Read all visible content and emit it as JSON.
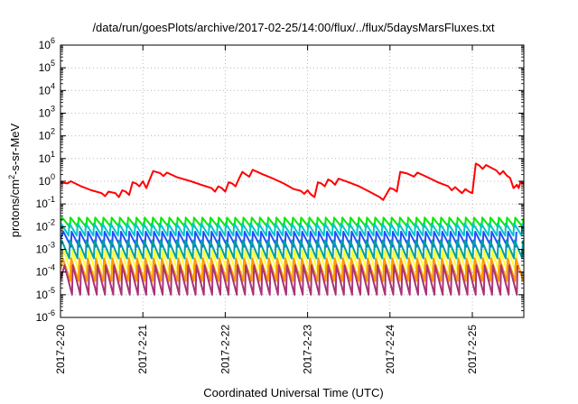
{
  "chart_data": {
    "type": "line",
    "title": "/data/run/goesPlots/archive/2017-02-25/14:00/flux/../flux/5daysMarsFluxes.txt",
    "xlabel": "Coordinated Universal Time (UTC)",
    "ylabel": "protons/cm²-s-sr-MeV",
    "ylabel_base": "protons/cm",
    "ylabel_sup": "2",
    "ylabel_rest": "-s-sr-MeV",
    "yscale": "log",
    "ylim": [
      1e-06,
      1000000.0
    ],
    "xlim": [
      "2017-02-20",
      "2017-02-25T15:00"
    ],
    "x_ticks": [
      "2017-2-20",
      "2017-2-21",
      "2017-2-22",
      "2017-2-23",
      "2017-2-24",
      "2017-2-25"
    ],
    "y_ticks": [
      {
        "base": "10",
        "exp": "-6"
      },
      {
        "base": "10",
        "exp": "-5"
      },
      {
        "base": "10",
        "exp": "-4"
      },
      {
        "base": "10",
        "exp": "-3"
      },
      {
        "base": "10",
        "exp": "-2"
      },
      {
        "base": "10",
        "exp": "-1"
      },
      {
        "base": "10",
        "exp": "0"
      },
      {
        "base": "10",
        "exp": "1"
      },
      {
        "base": "10",
        "exp": "2"
      },
      {
        "base": "10",
        "exp": "3"
      },
      {
        "base": "10",
        "exp": "4"
      },
      {
        "base": "10",
        "exp": "5"
      },
      {
        "base": "10",
        "exp": "6"
      }
    ],
    "grid": true,
    "series": [
      {
        "color": "#ff0000",
        "points": [
          [
            "2017-02-20T00:00",
            0.9
          ],
          [
            "2017-02-20T02:00",
            0.8
          ],
          [
            "2017-02-20T03:00",
            1.0
          ],
          [
            "2017-02-20T06:00",
            0.6
          ],
          [
            "2017-02-20T09:00",
            0.4
          ],
          [
            "2017-02-20T12:00",
            0.3
          ],
          [
            "2017-02-20T13:00",
            0.22
          ],
          [
            "2017-02-20T14:00",
            0.35
          ],
          [
            "2017-02-20T16:00",
            0.3
          ],
          [
            "2017-02-20T17:00",
            0.2
          ],
          [
            "2017-02-20T18:00",
            0.4
          ],
          [
            "2017-02-20T19:00",
            0.35
          ],
          [
            "2017-02-20T20:00",
            0.25
          ],
          [
            "2017-02-20T21:00",
            0.9
          ],
          [
            "2017-02-20T22:00",
            0.8
          ],
          [
            "2017-02-20T23:00",
            0.6
          ],
          [
            "2017-02-21T00:00",
            1.0
          ],
          [
            "2017-02-21T01:00",
            0.5
          ],
          [
            "2017-02-21T02:00",
            1.2
          ],
          [
            "2017-02-21T03:00",
            2.8
          ],
          [
            "2017-02-21T05:00",
            2.3
          ],
          [
            "2017-02-21T06:00",
            1.7
          ],
          [
            "2017-02-21T07:00",
            2.4
          ],
          [
            "2017-02-21T10:00",
            1.5
          ],
          [
            "2017-02-21T14:00",
            1.0
          ],
          [
            "2017-02-21T17:00",
            0.7
          ],
          [
            "2017-02-21T20:00",
            0.5
          ],
          [
            "2017-02-21T21:00",
            0.35
          ],
          [
            "2017-02-21T22:00",
            0.6
          ],
          [
            "2017-02-21T23:00",
            0.5
          ],
          [
            "2017-02-22T00:00",
            0.35
          ],
          [
            "2017-02-22T01:00",
            0.9
          ],
          [
            "2017-02-22T02:00",
            0.8
          ],
          [
            "2017-02-22T03:00",
            0.6
          ],
          [
            "2017-02-22T04:00",
            1.3
          ],
          [
            "2017-02-22T05:00",
            2.6
          ],
          [
            "2017-02-22T06:00",
            2.0
          ],
          [
            "2017-02-22T07:00",
            1.6
          ],
          [
            "2017-02-22T08:00",
            3.2
          ],
          [
            "2017-02-22T11:00",
            2.0
          ],
          [
            "2017-02-22T14:00",
            1.3
          ],
          [
            "2017-02-22T17:00",
            0.8
          ],
          [
            "2017-02-22T20:00",
            0.45
          ],
          [
            "2017-02-22T22:00",
            0.38
          ],
          [
            "2017-02-22T23:00",
            0.28
          ],
          [
            "2017-02-23T00:00",
            0.4
          ],
          [
            "2017-02-23T01:00",
            0.26
          ],
          [
            "2017-02-23T02:00",
            0.2
          ],
          [
            "2017-02-23T03:00",
            0.9
          ],
          [
            "2017-02-23T04:00",
            0.8
          ],
          [
            "2017-02-23T05:00",
            0.6
          ],
          [
            "2017-02-23T06:00",
            1.2
          ],
          [
            "2017-02-23T07:00",
            1.0
          ],
          [
            "2017-02-23T08:00",
            0.7
          ],
          [
            "2017-02-23T09:00",
            1.3
          ],
          [
            "2017-02-23T12:00",
            0.9
          ],
          [
            "2017-02-23T15:00",
            0.6
          ],
          [
            "2017-02-23T18:00",
            0.35
          ],
          [
            "2017-02-23T21:00",
            0.2
          ],
          [
            "2017-02-23T22:00",
            0.15
          ],
          [
            "2017-02-24T00:00",
            0.5
          ],
          [
            "2017-02-24T01:00",
            0.45
          ],
          [
            "2017-02-24T02:00",
            0.35
          ],
          [
            "2017-02-24T03:00",
            2.6
          ],
          [
            "2017-02-24T05:00",
            2.2
          ],
          [
            "2017-02-24T07:00",
            1.6
          ],
          [
            "2017-02-24T08:00",
            2.4
          ],
          [
            "2017-02-24T11:00",
            1.5
          ],
          [
            "2017-02-24T14:00",
            0.9
          ],
          [
            "2017-02-24T17:00",
            0.6
          ],
          [
            "2017-02-24T18:00",
            0.4
          ],
          [
            "2017-02-24T19:00",
            0.55
          ],
          [
            "2017-02-24T20:00",
            0.4
          ],
          [
            "2017-02-24T21:00",
            0.3
          ],
          [
            "2017-02-24T22:00",
            0.45
          ],
          [
            "2017-02-24T23:00",
            0.35
          ],
          [
            "2017-02-25T00:00",
            0.3
          ],
          [
            "2017-02-25T01:00",
            6.0
          ],
          [
            "2017-02-25T02:00",
            5.0
          ],
          [
            "2017-02-25T03:00",
            3.5
          ],
          [
            "2017-02-25T04:00",
            5.2
          ],
          [
            "2017-02-25T06:00",
            3.6
          ],
          [
            "2017-02-25T07:00",
            3.0
          ],
          [
            "2017-02-25T08:00",
            2.0
          ],
          [
            "2017-02-25T09:00",
            2.8
          ],
          [
            "2017-02-25T10:00",
            1.8
          ],
          [
            "2017-02-25T11:00",
            1.4
          ],
          [
            "2017-02-25T12:00",
            0.5
          ],
          [
            "2017-02-25T13:00",
            0.7
          ],
          [
            "2017-02-25T13:30",
            0.5
          ],
          [
            "2017-02-25T14:00",
            0.9
          ],
          [
            "2017-02-25T15:00",
            0.8
          ]
        ]
      },
      {
        "color": "#00ee00",
        "sawtooth": {
          "high": 0.025,
          "low": 0.0095,
          "start": "2017-02-20T00:30",
          "period_hours": 2.4
        }
      },
      {
        "color": "#00c8c8",
        "sawtooth": {
          "high": 0.014,
          "low": 0.004,
          "start": "2017-02-20T00:10",
          "period_hours": 2.4
        }
      },
      {
        "color": "#1f4fff",
        "sawtooth": {
          "high": 0.006,
          "low": 0.0013,
          "start": "2017-02-20T00:50",
          "period_hours": 2.4
        }
      },
      {
        "color": "#00a0a0",
        "sawtooth": {
          "high": 0.0025,
          "low": 0.0004,
          "start": "2017-02-20T00:20",
          "period_hours": 2.4
        }
      },
      {
        "color": "#ffff33",
        "sawtooth": {
          "high": 0.0009,
          "low": 8e-05,
          "start": "2017-02-20T01:00",
          "period_hours": 2.4
        }
      },
      {
        "color": "#ff9900",
        "sawtooth": {
          "high": 0.0004,
          "low": 4e-05,
          "start": "2017-02-20T00:40",
          "period_hours": 2.4
        }
      },
      {
        "color": "#aa3377",
        "sawtooth": {
          "high": 0.0002,
          "low": 1e-05,
          "start": "2017-02-20T01:10",
          "period_hours": 2.4
        }
      }
    ]
  }
}
